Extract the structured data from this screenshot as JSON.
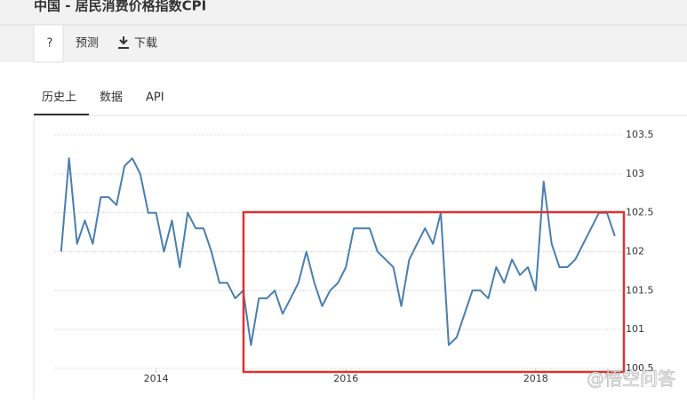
{
  "header": {
    "title": "中国 - 居民消费价格指数CPI"
  },
  "toolbar": [
    "?",
    "预测",
    "下载"
  ],
  "tabs": [
    "历史上",
    "数据",
    "API"
  ],
  "watermark": "@悟空问答",
  "chart_data": {
    "type": "line",
    "x": [
      2013,
      2013.083,
      2013.167,
      2013.25,
      2013.333,
      2013.417,
      2013.5,
      2013.583,
      2013.667,
      2013.75,
      2013.833,
      2013.917,
      2014,
      2014.083,
      2014.167,
      2014.25,
      2014.333,
      2014.417,
      2014.5,
      2014.583,
      2014.667,
      2014.75,
      2014.833,
      2014.917,
      2015,
      2015.083,
      2015.167,
      2015.25,
      2015.333,
      2015.417,
      2015.5,
      2015.583,
      2015.667,
      2015.75,
      2015.833,
      2015.917,
      2016,
      2016.083,
      2016.167,
      2016.25,
      2016.333,
      2016.417,
      2016.5,
      2016.583,
      2016.667,
      2016.75,
      2016.833,
      2016.917,
      2017,
      2017.083,
      2017.167,
      2017.25,
      2017.333,
      2017.417,
      2017.5,
      2017.583,
      2017.667,
      2017.75,
      2017.833,
      2017.917,
      2018,
      2018.083,
      2018.167,
      2018.25,
      2018.333,
      2018.417,
      2018.5,
      2018.583,
      2018.667,
      2018.75,
      2018.833
    ],
    "series": [
      {
        "name": "CPI",
        "color": "#4a7eb0",
        "values": [
          102.0,
          103.2,
          102.1,
          102.4,
          102.1,
          102.7,
          102.7,
          102.6,
          103.1,
          103.2,
          103.0,
          102.5,
          102.5,
          102.0,
          102.4,
          101.8,
          102.5,
          102.3,
          102.3,
          102.0,
          101.6,
          101.6,
          101.4,
          101.5,
          100.8,
          101.4,
          101.4,
          101.5,
          101.2,
          101.4,
          101.6,
          102.0,
          101.6,
          101.3,
          101.5,
          101.6,
          101.8,
          102.3,
          102.3,
          102.3,
          102.0,
          101.9,
          101.8,
          101.3,
          101.9,
          102.1,
          102.3,
          102.1,
          102.5,
          100.8,
          100.9,
          101.2,
          101.5,
          101.5,
          101.4,
          101.8,
          101.6,
          101.9,
          101.7,
          101.8,
          101.5,
          102.9,
          102.1,
          101.8,
          101.8,
          101.9,
          102.1,
          102.3,
          102.5,
          102.5,
          102.2
        ]
      }
    ],
    "xlim": [
      2012.73,
      2018.91
    ],
    "xticks": [
      2014,
      2016,
      2018
    ],
    "ylim": [
      100.5,
      103.5
    ],
    "yticks": [
      100.5,
      101,
      101.5,
      102,
      102.5,
      103,
      103.5
    ],
    "grid": true
  }
}
